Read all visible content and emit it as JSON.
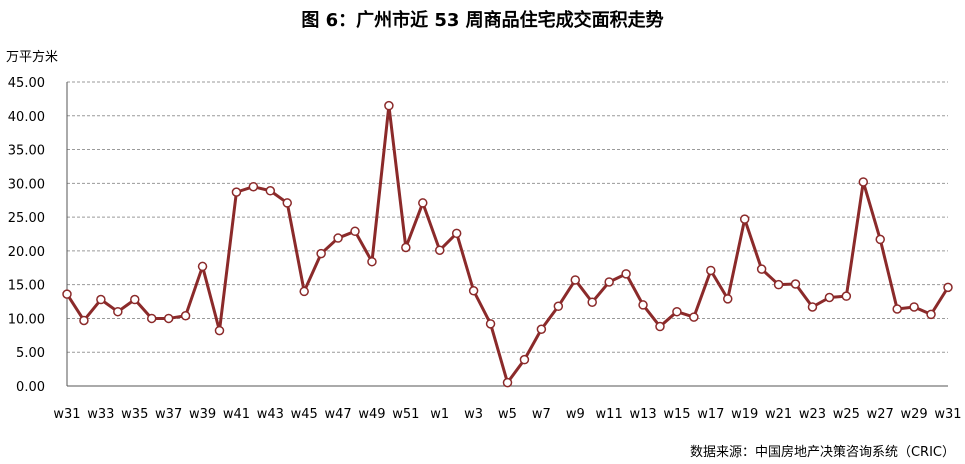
{
  "header": {
    "title": "图 6：广州市近 53 周商品住宅成交面积走势"
  },
  "footer": {
    "source": "数据来源：中国房地产决策咨询系统（CRIC）"
  },
  "colors": {
    "line": "#8B2A2A",
    "marker_fill": "#ffffff",
    "grid": "#9a9a9a",
    "axis": "#555555"
  },
  "chart_data": {
    "type": "line",
    "title": "图 6：广州市近 53 周商品住宅成交面积走势",
    "ylabel": "万平方米",
    "xlabel": "",
    "ylim": [
      0,
      45
    ],
    "yticks": [
      "0.00",
      "5.00",
      "10.00",
      "15.00",
      "20.00",
      "25.00",
      "30.00",
      "35.00",
      "40.00",
      "45.00"
    ],
    "grid": "horizontal-dashed",
    "legend": "none",
    "x_tick_labels": [
      "w31",
      "w33",
      "w35",
      "w37",
      "w39",
      "w41",
      "w43",
      "w45",
      "w47",
      "w49",
      "w51",
      "w1",
      "w3",
      "w5",
      "w7",
      "w9",
      "w11",
      "w13",
      "w15",
      "w17",
      "w19",
      "w21",
      "w23",
      "w25",
      "w27",
      "w29",
      "w31"
    ],
    "categories": [
      "w31",
      "w32",
      "w33",
      "w34",
      "w35",
      "w36",
      "w37",
      "w38",
      "w39",
      "w40",
      "w41",
      "w42",
      "w43",
      "w44",
      "w45",
      "w46",
      "w47",
      "w48",
      "w49",
      "w50",
      "w51",
      "w52",
      "w1",
      "w2",
      "w3",
      "w4",
      "w5",
      "w6",
      "w7",
      "w8",
      "w9",
      "w10",
      "w11",
      "w12",
      "w13",
      "w14",
      "w15",
      "w16",
      "w17",
      "w18",
      "w19",
      "w20",
      "w21",
      "w22",
      "w23",
      "w24",
      "w25",
      "w26",
      "w27",
      "w28",
      "w29",
      "w30",
      "w31"
    ],
    "values": [
      13.6,
      9.7,
      12.8,
      11.0,
      12.8,
      10.0,
      10.0,
      10.4,
      17.7,
      8.2,
      28.7,
      29.5,
      28.9,
      27.1,
      14.0,
      19.6,
      21.9,
      22.9,
      18.4,
      41.5,
      20.5,
      27.1,
      20.1,
      22.6,
      14.1,
      9.2,
      0.5,
      3.9,
      8.4,
      11.8,
      15.7,
      12.4,
      15.4,
      16.6,
      12.0,
      8.8,
      11.0,
      10.2,
      17.1,
      12.9,
      24.7,
      17.3,
      15.0,
      15.1,
      11.7,
      13.1,
      13.3,
      30.2,
      21.7,
      11.4,
      11.7,
      10.6,
      14.6
    ]
  }
}
